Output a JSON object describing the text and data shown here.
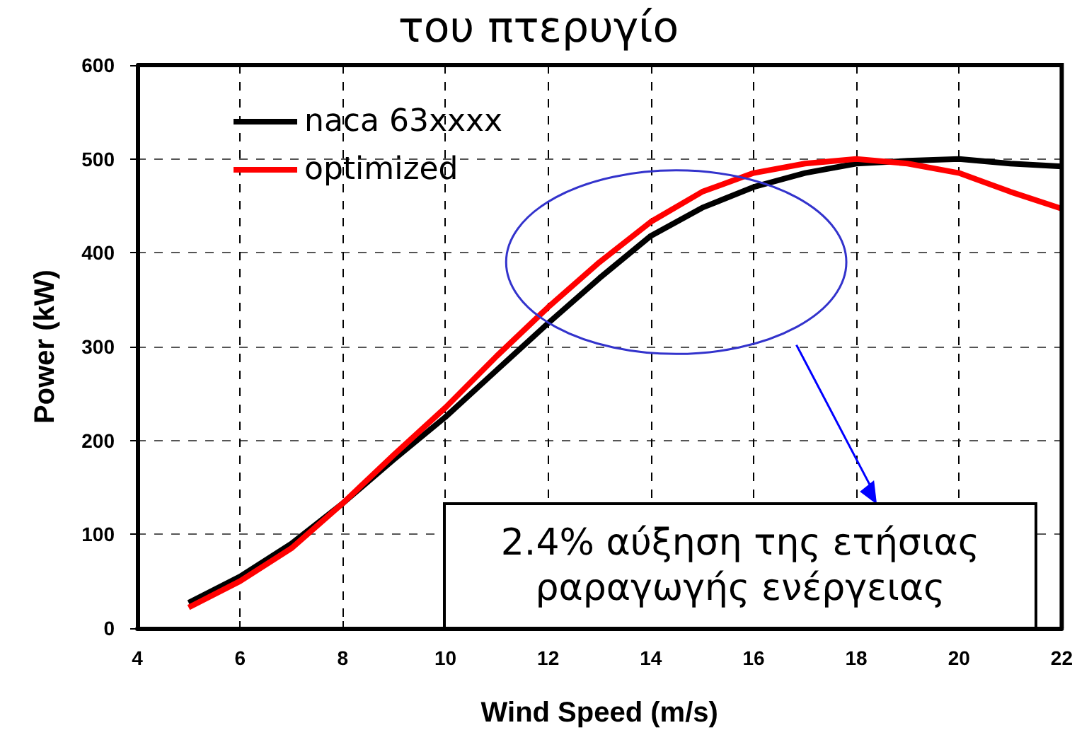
{
  "chart_data": {
    "type": "line",
    "title": "του πτερυγίο",
    "xlabel": "Wind Speed (m/s)",
    "ylabel": "Power (kW)",
    "x": [
      5,
      6,
      7,
      8,
      9,
      10,
      11,
      12,
      13,
      14,
      15,
      16,
      17,
      18,
      19,
      20,
      21,
      22
    ],
    "series": [
      {
        "name": "naca 63xxxx",
        "color": "#000000",
        "values": [
          27,
          55,
          90,
          133,
          180,
          225,
          275,
          325,
          373,
          418,
          448,
          470,
          485,
          495,
          498,
          500,
          495,
          492
        ]
      },
      {
        "name": "optimized",
        "color": "#ff0000",
        "values": [
          22,
          50,
          85,
          133,
          185,
          235,
          290,
          342,
          390,
          433,
          465,
          485,
          495,
          500,
          495,
          485,
          465,
          447
        ]
      }
    ],
    "xlim": [
      4,
      22
    ],
    "xticks": [
      4,
      6,
      8,
      10,
      12,
      14,
      16,
      18,
      20,
      22
    ],
    "ylim": [
      0,
      600
    ],
    "yticks": [
      0,
      100,
      200,
      300,
      400,
      500,
      600
    ],
    "grid": true,
    "legend": "top left",
    "marker": "none",
    "line_style": "solid",
    "annotations": [
      "2.4% αύξηση της ετήσιας\nραραγωγής ενέργειας"
    ]
  }
}
